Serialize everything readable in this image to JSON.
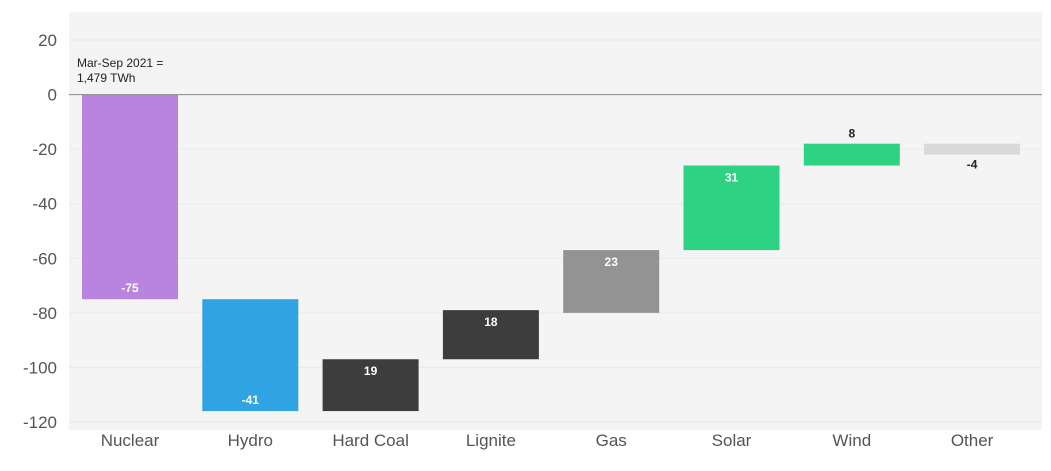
{
  "chart_data": {
    "type": "bar",
    "subtype": "waterfall",
    "title": "",
    "xlabel": "",
    "ylabel": "",
    "ylim": [
      -120,
      20
    ],
    "yticks": [
      20,
      0,
      -20,
      -40,
      -60,
      -80,
      -100,
      -120
    ],
    "grid": true,
    "annotation": {
      "lines": [
        "Mar-Sep 2021 =",
        "1,479 TWh"
      ],
      "value": 0
    },
    "categories": [
      "Nuclear",
      "Hydro",
      "Hard Coal",
      "Lignite",
      "Gas",
      "Solar",
      "Wind",
      "Other"
    ],
    "bars": [
      {
        "category": "Nuclear",
        "label": "-75",
        "start": 0,
        "end": -75,
        "color": "#b983e0",
        "label_color": "#ffffff",
        "label_pos": "inside-bottom"
      },
      {
        "category": "Hydro",
        "label": "-41",
        "start": -75,
        "end": -116,
        "color": "#30a4e2",
        "label_color": "#ffffff",
        "label_pos": "inside-bottom"
      },
      {
        "category": "Hard Coal",
        "label": "19",
        "start": -116,
        "end": -97,
        "color": "#3d3d3d",
        "label_color": "#ffffff",
        "label_pos": "inside-top"
      },
      {
        "category": "Lignite",
        "label": "18",
        "start": -97,
        "end": -79,
        "color": "#3d3d3d",
        "label_color": "#ffffff",
        "label_pos": "inside-top"
      },
      {
        "category": "Gas",
        "label": "23",
        "start": -80,
        "end": -57,
        "color": "#939393",
        "label_color": "#ffffff",
        "label_pos": "inside-top"
      },
      {
        "category": "Solar",
        "label": "31",
        "start": -57,
        "end": -26,
        "color": "#2ed283",
        "label_color": "#ffffff",
        "label_pos": "inside-top"
      },
      {
        "category": "Wind",
        "label": "8",
        "start": -26,
        "end": -18,
        "color": "#2ed283",
        "label_color": "#222222",
        "label_pos": "above"
      },
      {
        "category": "Other",
        "label": "-4",
        "start": -18,
        "end": -22,
        "color": "#d9d9d9",
        "label_color": "#222222",
        "label_pos": "below"
      }
    ]
  }
}
